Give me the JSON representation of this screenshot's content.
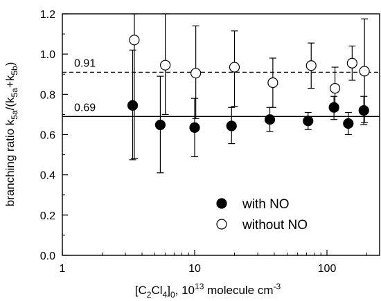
{
  "chart_data": {
    "type": "scatter",
    "x_scale": "log",
    "xlim": [
      1,
      250
    ],
    "ylim": [
      0.0,
      1.2
    ],
    "x_ticks": [
      1,
      10,
      100
    ],
    "x_tick_labels": [
      "1",
      "10",
      "100"
    ],
    "y_ticks": [
      0.0,
      0.2,
      0.4,
      0.6,
      0.8,
      1.0,
      1.2
    ],
    "y_tick_labels": [
      "0.0",
      "0.2",
      "0.4",
      "0.6",
      "0.8",
      "1.0",
      "1.2"
    ],
    "xlabel": {
      "pre": "[C",
      "s1": "2",
      "mid1": "Cl",
      "s2": "4",
      "mid2": "]",
      "s3": "0",
      "mid3": ", 10",
      "sup": "13",
      "post": " molecule cm"
    },
    "xlabel_sup2": "-3",
    "ylabel": {
      "pre": "branching ratio k",
      "s1": "5a",
      "mid": "/(k",
      "s2": "5a",
      "mid2": "+k",
      "s3": "5b",
      "post": ")"
    },
    "reference_lines": [
      {
        "y": 0.91,
        "label": "0.91",
        "style": "dashed"
      },
      {
        "y": 0.69,
        "label": "0.69",
        "style": "solid"
      }
    ],
    "legend_position": "lower-right",
    "grid": false,
    "series": [
      {
        "name": "with NO",
        "marker": "filled-circle",
        "color": "#000000",
        "points": [
          {
            "x": 3.4,
            "y": 0.745,
            "err_low": 0.475,
            "err_high": 1.02
          },
          {
            "x": 5.5,
            "y": 0.648,
            "err_low": 0.41,
            "err_high": 0.89
          },
          {
            "x": 10,
            "y": 0.635,
            "err_low": 0.49,
            "err_high": 0.78
          },
          {
            "x": 19,
            "y": 0.643,
            "err_low": 0.555,
            "err_high": 0.735
          },
          {
            "x": 37,
            "y": 0.675,
            "err_low": 0.615,
            "err_high": 0.735
          },
          {
            "x": 72,
            "y": 0.668,
            "err_low": 0.625,
            "err_high": 0.71
          },
          {
            "x": 113,
            "y": 0.735,
            "err_low": 0.675,
            "err_high": 0.79
          },
          {
            "x": 145,
            "y": 0.655,
            "err_low": 0.6,
            "err_high": 0.71
          },
          {
            "x": 190,
            "y": 0.72,
            "err_low": 0.65,
            "err_high": 0.79
          }
        ]
      },
      {
        "name": "without NO",
        "marker": "open-circle",
        "color": "#000000",
        "points": [
          {
            "x": 3.5,
            "y": 1.07,
            "err_low": 0.48,
            "err_high": 1.2
          },
          {
            "x": 6,
            "y": 0.945,
            "err_low": 0.7,
            "err_high": 1.2
          },
          {
            "x": 10.2,
            "y": 0.905,
            "err_low": 0.68,
            "err_high": 1.14
          },
          {
            "x": 20,
            "y": 0.935,
            "err_low": 0.74,
            "err_high": 1.115
          },
          {
            "x": 39,
            "y": 0.858,
            "err_low": 0.735,
            "err_high": 0.98
          },
          {
            "x": 76,
            "y": 0.943,
            "err_low": 0.83,
            "err_high": 1.055
          },
          {
            "x": 115,
            "y": 0.83,
            "err_low": 0.72,
            "err_high": 0.935
          },
          {
            "x": 155,
            "y": 0.955,
            "err_low": 0.87,
            "err_high": 1.04
          },
          {
            "x": 192,
            "y": 0.915,
            "err_low": 0.66,
            "err_high": 1.175
          }
        ]
      }
    ]
  }
}
